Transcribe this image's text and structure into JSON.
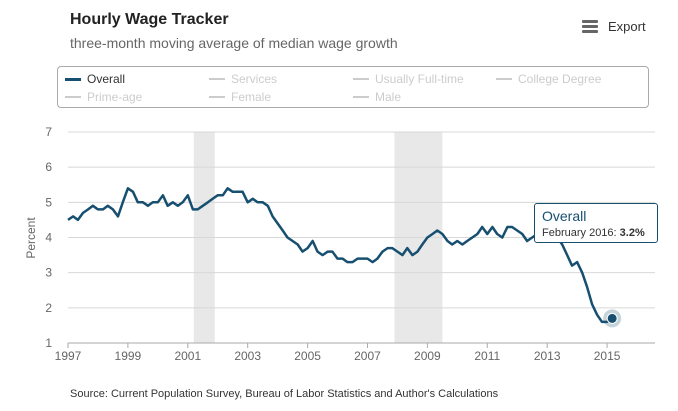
{
  "header": {
    "title": "Hourly Wage Tracker",
    "subtitle": "three-month moving average of median wage growth",
    "export_label": "Export"
  },
  "legend": [
    {
      "label": "Overall",
      "active": true
    },
    {
      "label": "Services",
      "active": false
    },
    {
      "label": "Usually Full-time",
      "active": false
    },
    {
      "label": "College Degree",
      "active": false
    },
    {
      "label": "Prime-age",
      "active": false
    },
    {
      "label": "Female",
      "active": false
    },
    {
      "label": "Male",
      "active": false
    }
  ],
  "tooltip": {
    "series": "Overall",
    "date": "February 2016:",
    "value": "3.2%"
  },
  "source": "Source: Current Population Survey, Bureau of Labor Statistics and Author's Calculations",
  "colors": {
    "series": "#174f70",
    "recession": "#e8e8e8",
    "grid": "#d8d8d8",
    "inactive": "#cccccc"
  },
  "chart_data": {
    "type": "line",
    "title": "Hourly Wage Tracker",
    "subtitle": "three-month moving average of median wage growth",
    "xlabel": "",
    "ylabel": "Percent",
    "ylim": [
      1,
      7
    ],
    "xlim": [
      1997,
      2016.6
    ],
    "x_ticks": [
      1997,
      1999,
      2001,
      2003,
      2005,
      2007,
      2009,
      2011,
      2013,
      2015
    ],
    "y_ticks": [
      1,
      2,
      3,
      4,
      5,
      6,
      7
    ],
    "grid": true,
    "legend_position": "top",
    "recession_shading": [
      [
        2001.2,
        2001.9
      ],
      [
        2007.9,
        2009.5
      ]
    ],
    "series": [
      {
        "name": "Overall",
        "points": [
          [
            1997.0,
            4.5
          ],
          [
            1997.17,
            4.6
          ],
          [
            1997.33,
            4.5
          ],
          [
            1997.5,
            4.7
          ],
          [
            1997.67,
            4.8
          ],
          [
            1997.83,
            4.9
          ],
          [
            1998.0,
            4.8
          ],
          [
            1998.17,
            4.8
          ],
          [
            1998.33,
            4.9
          ],
          [
            1998.5,
            4.8
          ],
          [
            1998.67,
            4.6
          ],
          [
            1998.83,
            5.0
          ],
          [
            1999.0,
            5.4
          ],
          [
            1999.17,
            5.3
          ],
          [
            1999.33,
            5.0
          ],
          [
            1999.5,
            5.0
          ],
          [
            1999.67,
            4.9
          ],
          [
            1999.83,
            5.0
          ],
          [
            2000.0,
            5.0
          ],
          [
            2000.17,
            5.2
          ],
          [
            2000.33,
            4.9
          ],
          [
            2000.5,
            5.0
          ],
          [
            2000.67,
            4.9
          ],
          [
            2000.83,
            5.0
          ],
          [
            2001.0,
            5.2
          ],
          [
            2001.17,
            4.8
          ],
          [
            2001.33,
            4.8
          ],
          [
            2001.5,
            4.9
          ],
          [
            2001.67,
            5.0
          ],
          [
            2001.83,
            5.1
          ],
          [
            2002.0,
            5.2
          ],
          [
            2002.17,
            5.2
          ],
          [
            2002.33,
            5.4
          ],
          [
            2002.5,
            5.3
          ],
          [
            2002.67,
            5.3
          ],
          [
            2002.83,
            5.3
          ],
          [
            2003.0,
            5.0
          ],
          [
            2003.17,
            5.1
          ],
          [
            2003.33,
            5.0
          ],
          [
            2003.5,
            5.0
          ],
          [
            2003.67,
            4.9
          ],
          [
            2003.83,
            4.6
          ],
          [
            2004.0,
            4.4
          ],
          [
            2004.17,
            4.2
          ],
          [
            2004.33,
            4.0
          ],
          [
            2004.5,
            3.9
          ],
          [
            2004.67,
            3.8
          ],
          [
            2004.83,
            3.6
          ],
          [
            2005.0,
            3.7
          ],
          [
            2005.17,
            3.9
          ],
          [
            2005.33,
            3.6
          ],
          [
            2005.5,
            3.5
          ],
          [
            2005.67,
            3.6
          ],
          [
            2005.83,
            3.6
          ],
          [
            2006.0,
            3.4
          ],
          [
            2006.17,
            3.4
          ],
          [
            2006.33,
            3.3
          ],
          [
            2006.5,
            3.3
          ],
          [
            2006.67,
            3.4
          ],
          [
            2006.83,
            3.4
          ],
          [
            2007.0,
            3.4
          ],
          [
            2007.17,
            3.3
          ],
          [
            2007.33,
            3.4
          ],
          [
            2007.5,
            3.6
          ],
          [
            2007.67,
            3.7
          ],
          [
            2007.83,
            3.7
          ],
          [
            2008.0,
            3.6
          ],
          [
            2008.17,
            3.5
          ],
          [
            2008.33,
            3.7
          ],
          [
            2008.5,
            3.5
          ],
          [
            2008.67,
            3.6
          ],
          [
            2008.83,
            3.8
          ],
          [
            2009.0,
            4.0
          ],
          [
            2009.17,
            4.1
          ],
          [
            2009.33,
            4.2
          ],
          [
            2009.5,
            4.1
          ],
          [
            2009.67,
            3.9
          ],
          [
            2009.83,
            3.8
          ],
          [
            2010.0,
            3.9
          ],
          [
            2010.17,
            3.8
          ],
          [
            2010.33,
            3.9
          ],
          [
            2010.5,
            4.0
          ],
          [
            2010.67,
            4.1
          ],
          [
            2010.83,
            4.3
          ],
          [
            2011.0,
            4.1
          ],
          [
            2011.17,
            4.3
          ],
          [
            2011.33,
            4.1
          ],
          [
            2011.5,
            4.0
          ],
          [
            2011.67,
            4.3
          ],
          [
            2011.83,
            4.3
          ],
          [
            2012.0,
            4.2
          ],
          [
            2012.17,
            4.1
          ],
          [
            2012.33,
            3.9
          ],
          [
            2012.5,
            4.0
          ],
          [
            2012.67,
            4.1
          ],
          [
            2012.83,
            4.0
          ],
          [
            2013.0,
            4.0
          ],
          [
            2013.17,
            4.0
          ],
          [
            2013.33,
            4.0
          ],
          [
            2013.5,
            3.8
          ],
          [
            2013.67,
            3.5
          ],
          [
            2013.83,
            3.2
          ],
          [
            2014.0,
            3.3
          ],
          [
            2014.17,
            3.0
          ],
          [
            2014.33,
            2.6
          ],
          [
            2014.5,
            2.1
          ],
          [
            2014.67,
            1.8
          ],
          [
            2014.83,
            1.6
          ],
          [
            2015.0,
            1.6
          ],
          [
            2015.17,
            1.7
          ]
        ]
      }
    ]
  }
}
